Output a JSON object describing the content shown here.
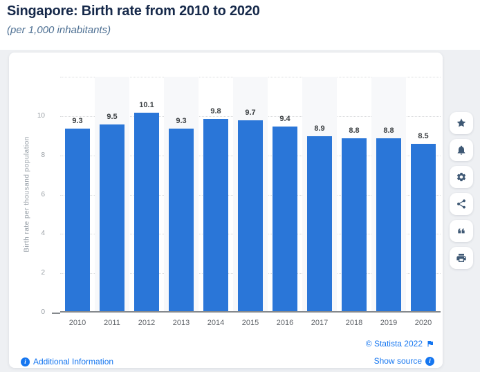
{
  "header": {
    "title": "Singapore: Birth rate from 2010 to 2020",
    "subtitle": "(per 1,000 inhabitants)"
  },
  "chart_data": {
    "type": "bar",
    "categories": [
      "2010",
      "2011",
      "2012",
      "2013",
      "2014",
      "2015",
      "2016",
      "2017",
      "2018",
      "2019",
      "2020"
    ],
    "values": [
      9.3,
      9.5,
      10.1,
      9.3,
      9.8,
      9.7,
      9.4,
      8.9,
      8.8,
      8.8,
      8.5
    ],
    "data_labels": [
      "9.3",
      "9.5",
      "10.1",
      "9.3",
      "9.8",
      "9.7",
      "9.4",
      "8.9",
      "8.8",
      "8.8",
      "8.5"
    ],
    "title": "Singapore: Birth rate from 2010 to 2020",
    "xlabel": "",
    "ylabel": "Birth rate per thousand population",
    "ylim": [
      0,
      12
    ],
    "yticks": [
      0,
      2,
      4,
      6,
      8,
      10
    ],
    "grid": "horizontal-dotted",
    "legend": "none",
    "striped_columns": "alternating starting with 2011"
  },
  "toolbar": {
    "icons": [
      "star-icon",
      "bell-icon",
      "gear-icon",
      "share-icon",
      "quote-icon",
      "print-icon"
    ]
  },
  "footer": {
    "additional_info": "Additional Information",
    "copyright": "© Statista 2022",
    "show_source": "Show source"
  },
  "colors": {
    "bar": "#2a76d8",
    "link": "#1576f0",
    "title": "#16294a",
    "subtitle": "#4e7093",
    "icon": "#3e5874",
    "stripe": "#f7f8fa",
    "page_bg": "#eef0f3",
    "gridline": "#d9dbdd",
    "axis": "#85898d"
  }
}
